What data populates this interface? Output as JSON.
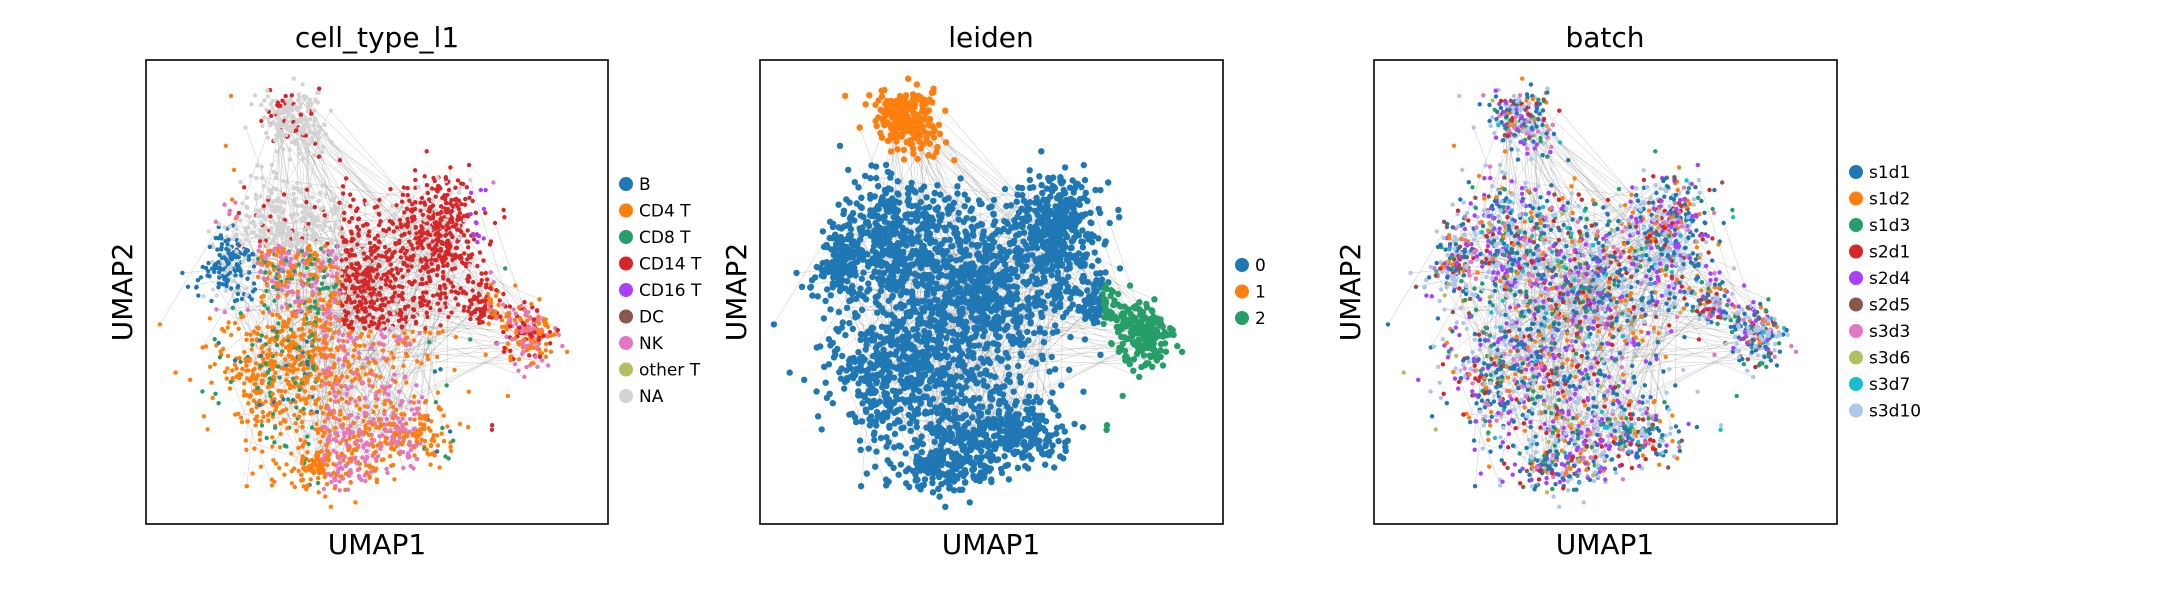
{
  "chart_data": [
    {
      "type": "scatter",
      "title": "cell_type_l1",
      "xlabel": "UMAP1",
      "ylabel": "UMAP2",
      "legend_position": "right",
      "grid": false,
      "legend": [
        {
          "label": "B",
          "color": "#1f77b4"
        },
        {
          "label": "CD4 T",
          "color": "#ff7f0e"
        },
        {
          "label": "CD8 T",
          "color": "#279e68"
        },
        {
          "label": "CD14 T",
          "color": "#d62728"
        },
        {
          "label": "CD16 T",
          "color": "#aa40fc"
        },
        {
          "label": "DC",
          "color": "#8c564b"
        },
        {
          "label": "NK",
          "color": "#e377c2"
        },
        {
          "label": "other T",
          "color": "#b5bd61"
        },
        {
          "label": "NA",
          "color": "#d3d3d3"
        }
      ]
    },
    {
      "type": "scatter",
      "title": "leiden",
      "xlabel": "UMAP1",
      "ylabel": "UMAP2",
      "legend_position": "right",
      "grid": false,
      "legend": [
        {
          "label": "0",
          "color": "#1f77b4"
        },
        {
          "label": "1",
          "color": "#ff7f0e"
        },
        {
          "label": "2",
          "color": "#279e68"
        }
      ]
    },
    {
      "type": "scatter",
      "title": "batch",
      "xlabel": "UMAP1",
      "ylabel": "UMAP2",
      "legend_position": "right",
      "grid": false,
      "legend": [
        {
          "label": "s1d1",
          "color": "#1f77b4"
        },
        {
          "label": "s1d2",
          "color": "#ff7f0e"
        },
        {
          "label": "s1d3",
          "color": "#279e68"
        },
        {
          "label": "s2d1",
          "color": "#d62728"
        },
        {
          "label": "s2d4",
          "color": "#aa40fc"
        },
        {
          "label": "s2d5",
          "color": "#8c564b"
        },
        {
          "label": "s3d3",
          "color": "#e377c2"
        },
        {
          "label": "s3d6",
          "color": "#b5bd61"
        },
        {
          "label": "s3d7",
          "color": "#17becf"
        },
        {
          "label": "s3d10",
          "color": "#aec7e8"
        }
      ]
    }
  ],
  "edge_color": "#808080"
}
